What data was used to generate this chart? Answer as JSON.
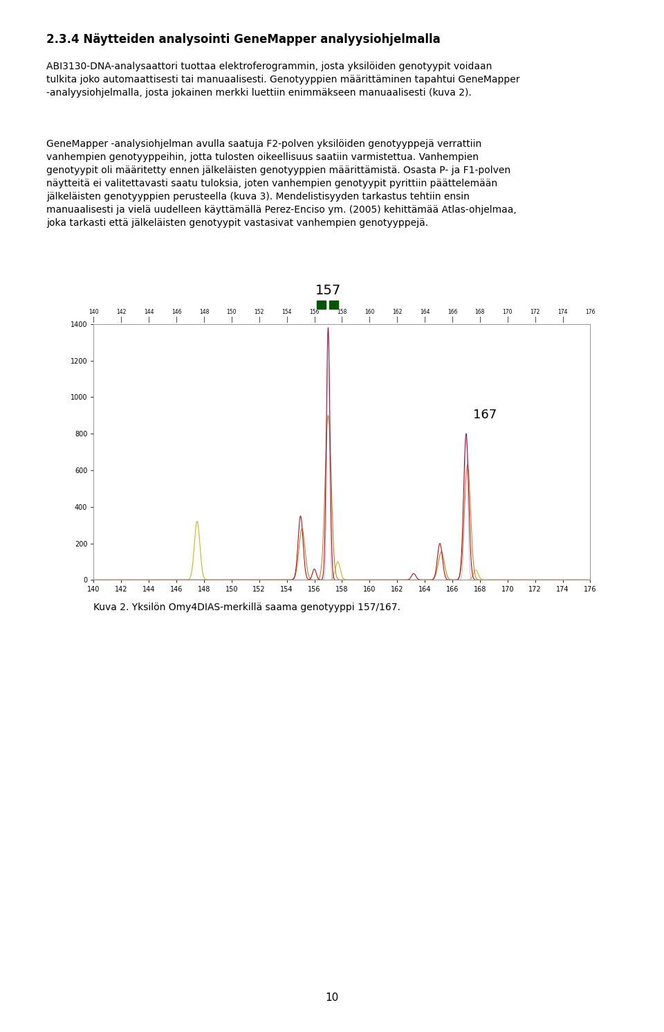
{
  "title": "",
  "xlabel": "",
  "ylabel": "",
  "xlim": [
    140,
    176
  ],
  "ylim": [
    0,
    1400
  ],
  "x_ticks": [
    140,
    142,
    144,
    146,
    148,
    150,
    152,
    154,
    156,
    158,
    160,
    162,
    164,
    166,
    168,
    170,
    172,
    174,
    176
  ],
  "y_ticks": [
    0,
    200,
    400,
    600,
    800,
    1000,
    1200,
    1400
  ],
  "bg_color": "#ffffff",
  "red_color": "#c00000",
  "orange_color": "#cc6600",
  "yellow_color": "#ccaa00",
  "blue_color": "#4444cc",
  "header_bg": "#e0e0e0",
  "ruler_bg": "#d0d0d0",
  "marker_green": "#005500",
  "caption": "Kuva 2. Yksilön Omy4DIAS-merkillä saama genotyyppi 157/167.",
  "page_number": "10",
  "heading": "2.3.4 Näytteiden analysointi GeneMapper analyysiohjelmalla",
  "para1": "ABI3130-DNA-analysaattori tuottaa elektroferogrammin, josta yksilöiden genotyypit voidaan tulkita joko automaattisesti tai manuaalisesti. Genotyyppien määrittäminen tapahtui GeneMapper -analyysiohjelmalla, josta jokainen merkki luettiin enimmäkseen manuaalisesti (kuva 2).",
  "para2": "GeneMapper -analysiohjelman avulla saatuja F2-polven yksilöiden genotyyppejä verrattiin vanhempien genotyyppeihin, jotta tulosten oikeellisuus saatiin varmistettua. Vanhempien genotyypit oli määritetty ennen jälkeläisten genotyyppien määrittämistä. Osasta P- ja F1-polven näytteitä ei valitettavasti saatu tuloksia, joten vanhempien genotyypit pyrittiin päättelemään jälkeläisten genotyyppien perusteella (kuva 3). Mendelistisyyden tarkastus tehtiin ensin manuaalisesti ja vielä uudelleen käyttämällä Perez-Enciso ym. (2005) kehittämää Atlas-ohjelmaa, joka tarkasti että jälkeläisten genotyypit vastasivat vanhempien genotyyppejä."
}
